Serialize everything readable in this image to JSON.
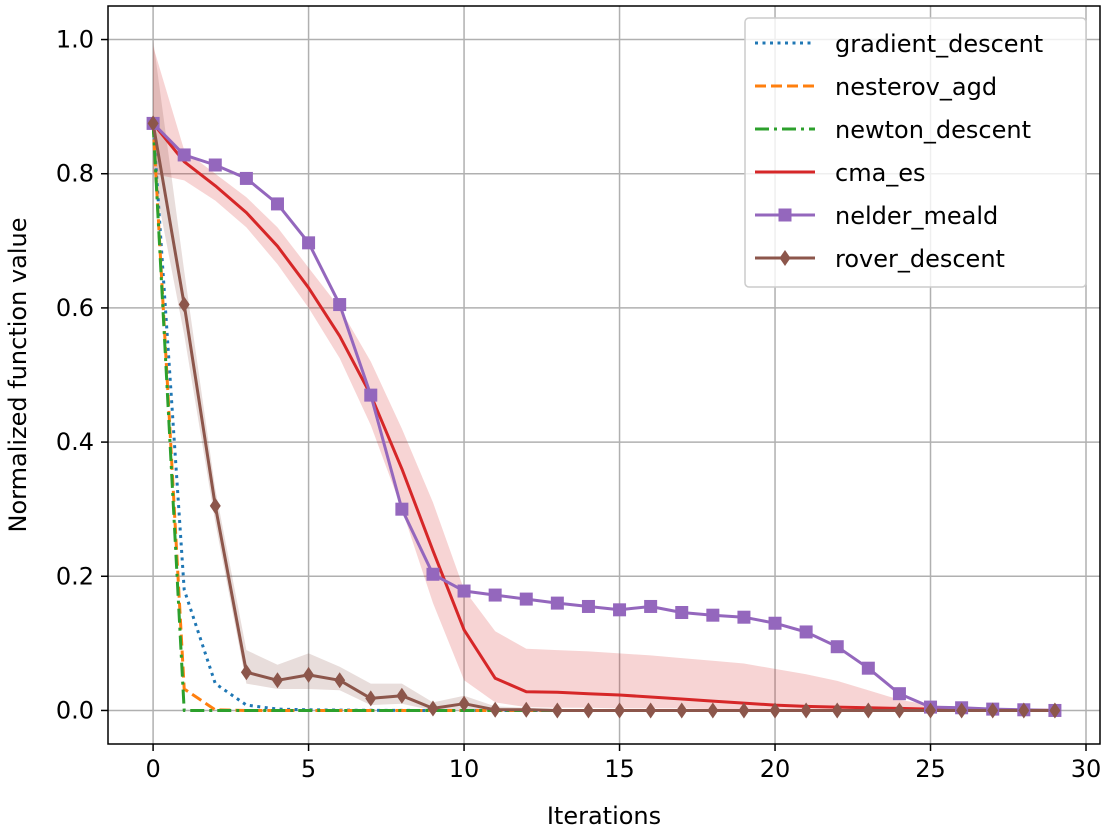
{
  "chart_data": {
    "type": "line",
    "title": "",
    "xlabel": "Iterations",
    "ylabel": "Normalized function value",
    "xlim": [
      -1.45,
      30.45
    ],
    "ylim": [
      -0.05,
      1.05
    ],
    "xticks": [
      0,
      5,
      10,
      15,
      20,
      25,
      30
    ],
    "xtick_labels": [
      "0",
      "5",
      "10",
      "15",
      "20",
      "25",
      "30"
    ],
    "yticks": [
      0.0,
      0.2,
      0.4,
      0.6,
      0.8,
      1.0
    ],
    "ytick_labels": [
      "0.0",
      "0.2",
      "0.4",
      "0.6",
      "0.8",
      "1.0"
    ],
    "grid": true,
    "legend_position": "top-right",
    "series": [
      {
        "name": "gradient_descent",
        "color": "#1f77b4",
        "linestyle": "dotted",
        "marker": "none",
        "x": [
          0,
          1,
          2,
          3,
          4,
          5,
          6,
          7,
          8,
          9,
          10,
          11,
          12,
          13,
          14,
          15,
          16,
          17,
          18,
          19,
          20,
          21,
          22,
          23,
          24,
          25,
          26,
          27,
          28,
          29
        ],
        "values": [
          0.875,
          0.18,
          0.04,
          0.008,
          0.002,
          0.001,
          0.0005,
          0.0002,
          0.0001,
          0,
          0,
          0,
          0,
          0,
          0,
          0,
          0,
          0,
          0,
          0,
          0,
          0,
          0,
          0,
          0,
          0,
          0,
          0,
          0,
          0
        ]
      },
      {
        "name": "nesterov_agd",
        "color": "#ff7f0e",
        "linestyle": "dashed",
        "marker": "none",
        "x": [
          0,
          1,
          2,
          3,
          4,
          5,
          6,
          7,
          8,
          9,
          10,
          11,
          12,
          13,
          14,
          15,
          16,
          17,
          18,
          19,
          20,
          21,
          22,
          23,
          24,
          25,
          26,
          27,
          28,
          29
        ],
        "values": [
          0.875,
          0.032,
          0.001,
          0,
          0,
          0,
          0,
          0,
          0,
          0,
          0,
          0,
          0,
          0,
          0,
          0,
          0,
          0,
          0,
          0,
          0,
          0,
          0,
          0,
          0,
          0,
          0,
          0,
          0,
          0
        ]
      },
      {
        "name": "newton_descent",
        "color": "#2ca02c",
        "linestyle": "dashdot",
        "marker": "none",
        "x": [
          0,
          1,
          2,
          3,
          4,
          5,
          6,
          7,
          8,
          9,
          10,
          11,
          12,
          13,
          14,
          15,
          16,
          17,
          18,
          19,
          20,
          21,
          22,
          23,
          24,
          25,
          26,
          27,
          28,
          29
        ],
        "values": [
          0.875,
          0.0,
          0,
          0,
          0,
          0,
          0,
          0,
          0,
          0,
          0,
          0,
          0,
          0,
          0,
          0,
          0,
          0,
          0,
          0,
          0,
          0,
          0,
          0,
          0,
          0,
          0,
          0,
          0,
          0
        ]
      },
      {
        "name": "cma_es",
        "color": "#d62728",
        "linestyle": "solid",
        "marker": "none",
        "x": [
          0,
          1,
          2,
          3,
          4,
          5,
          6,
          7,
          8,
          9,
          10,
          11,
          12,
          13,
          14,
          15,
          16,
          17,
          18,
          19,
          20,
          21,
          22,
          23,
          24,
          25,
          26,
          27,
          28,
          29
        ],
        "values": [
          0.875,
          0.818,
          0.782,
          0.742,
          0.692,
          0.63,
          0.558,
          0.47,
          0.36,
          0.238,
          0.12,
          0.048,
          0.028,
          0.027,
          0.025,
          0.023,
          0.02,
          0.017,
          0.014,
          0.011,
          0.008,
          0.006,
          0.005,
          0.004,
          0.003,
          0.002,
          0.001,
          0.0005,
          0.0002,
          0.0001
        ],
        "band_lower": [
          0.8,
          0.79,
          0.76,
          0.72,
          0.665,
          0.6,
          0.525,
          0.425,
          0.3,
          0.16,
          0.045,
          0.012,
          0.005,
          0.004,
          0.004,
          0.003,
          0.003,
          0.003,
          0.002,
          0.002,
          0.002,
          0.001,
          0.001,
          0.001,
          0.0,
          0.0,
          0.0,
          0.0,
          0.0,
          0.0
        ],
        "band_upper": [
          0.99,
          0.835,
          0.8,
          0.765,
          0.72,
          0.66,
          0.6,
          0.52,
          0.42,
          0.31,
          0.18,
          0.118,
          0.092,
          0.09,
          0.088,
          0.085,
          0.082,
          0.078,
          0.074,
          0.07,
          0.062,
          0.054,
          0.044,
          0.03,
          0.016,
          0.008,
          0.004,
          0.002,
          0.001,
          0.0005
        ]
      },
      {
        "name": "nelder_meald",
        "color": "#9467bd",
        "linestyle": "solid",
        "marker": "square",
        "x": [
          0,
          1,
          2,
          3,
          4,
          5,
          6,
          7,
          8,
          9,
          10,
          11,
          12,
          13,
          14,
          15,
          16,
          17,
          18,
          19,
          20,
          21,
          22,
          23,
          24,
          25,
          26,
          27,
          28,
          29
        ],
        "values": [
          0.875,
          0.828,
          0.813,
          0.793,
          0.755,
          0.697,
          0.605,
          0.47,
          0.3,
          0.203,
          0.178,
          0.172,
          0.166,
          0.16,
          0.155,
          0.15,
          0.155,
          0.146,
          0.142,
          0.139,
          0.13,
          0.117,
          0.095,
          0.063,
          0.025,
          0.005,
          0.004,
          0.002,
          0.001,
          0.0
        ]
      },
      {
        "name": "rover_descent",
        "color": "#8c564b",
        "linestyle": "solid",
        "marker": "diamond",
        "x": [
          0,
          1,
          2,
          3,
          4,
          5,
          6,
          7,
          8,
          9,
          10,
          11,
          12,
          13,
          14,
          15,
          16,
          17,
          18,
          19,
          20,
          21,
          22,
          23,
          24,
          25,
          26,
          27,
          28,
          29
        ],
        "values": [
          0.875,
          0.605,
          0.305,
          0.057,
          0.045,
          0.053,
          0.045,
          0.018,
          0.022,
          0.003,
          0.01,
          0.001,
          0.001,
          0.0,
          0.0,
          0.0,
          0.0,
          0.0,
          0.0,
          0.0,
          0.0,
          0.0,
          0.0,
          0.0,
          0.0,
          0.0,
          0.0,
          0.0,
          0.0,
          0.0
        ],
        "band_lower": [
          0.8,
          0.56,
          0.28,
          0.04,
          0.032,
          0.032,
          0.03,
          0.008,
          0.01,
          0.0,
          0.002,
          0.0,
          0.0,
          0.0,
          0.0,
          0.0,
          0.0,
          0.0,
          0.0,
          0.0,
          0.0,
          0.0,
          0.0,
          0.0,
          0.0,
          0.0,
          0.0,
          0.0,
          0.0,
          0.0
        ],
        "band_upper": [
          1.0,
          0.655,
          0.33,
          0.09,
          0.068,
          0.085,
          0.065,
          0.04,
          0.04,
          0.012,
          0.022,
          0.006,
          0.004,
          0.002,
          0.001,
          0.0,
          0.0,
          0.0,
          0.0,
          0.0,
          0.0,
          0.0,
          0.0,
          0.0,
          0.0,
          0.0,
          0.0,
          0.0,
          0.0,
          0.0
        ]
      }
    ]
  }
}
